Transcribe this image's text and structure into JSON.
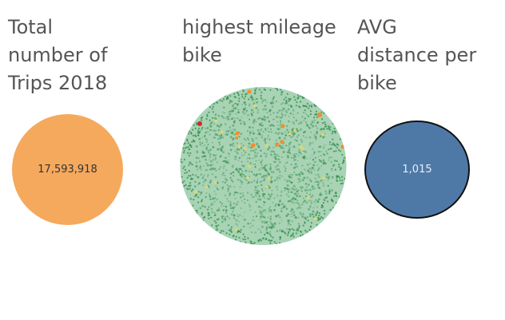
{
  "panels": {
    "trips": {
      "title_lines": [
        "Total",
        "number of",
        "Trips 2018"
      ],
      "value": "17,593,918",
      "color": "#f5a95d"
    },
    "mileage": {
      "title_lines": [
        "highest mileage",
        "bike"
      ],
      "base_color": "#a9d3b5",
      "dot_colors": [
        "#2e8b4a",
        "#e9d66b",
        "#f28e2b",
        "#d62728"
      ]
    },
    "avg": {
      "title_lines": [
        "AVG",
        "distance per",
        "bike"
      ],
      "value": "1,015",
      "color": "#4e79a7"
    }
  }
}
